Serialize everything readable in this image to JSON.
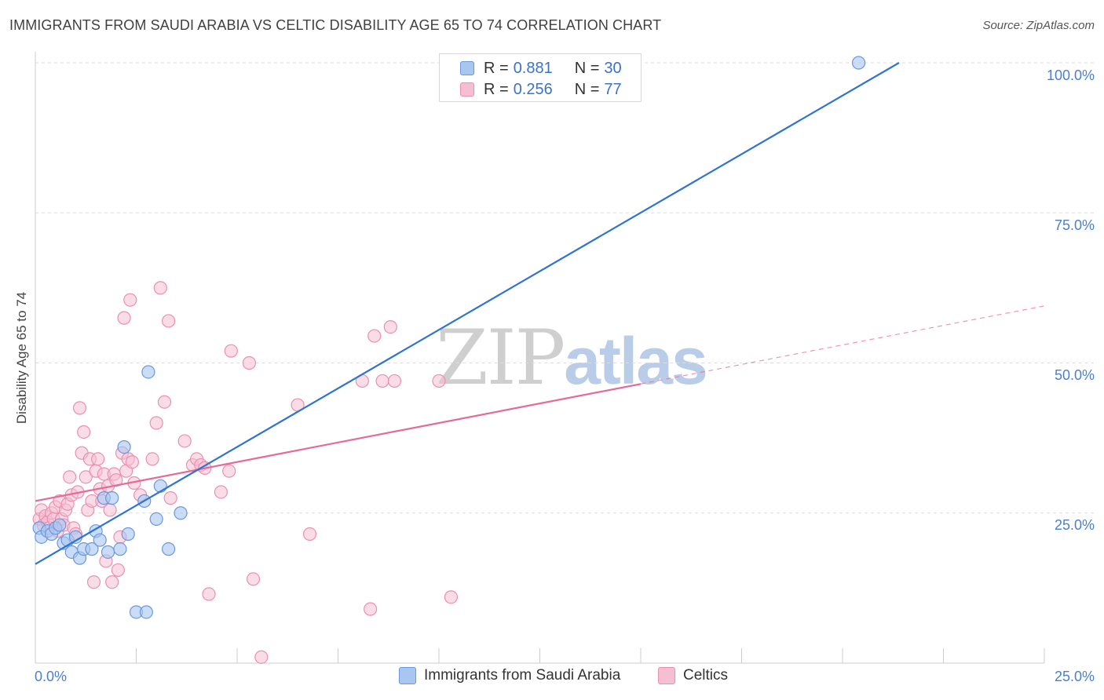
{
  "title": "IMMIGRANTS FROM SAUDI ARABIA VS CELTIC DISABILITY AGE 65 TO 74 CORRELATION CHART",
  "source": "Source: ZipAtlas.com",
  "watermark": {
    "zip": "ZIP",
    "atlas": "atlas"
  },
  "legend": {
    "series1": {
      "r_label": "R =",
      "r_value": "0.881",
      "n_label": "N =",
      "n_value": "30"
    },
    "series2": {
      "r_label": "R =",
      "r_value": "0.256",
      "n_label": "N =",
      "n_value": "77"
    }
  },
  "bottom_legend": {
    "series1": "Immigrants from Saudi Arabia",
    "series2": "Celtics"
  },
  "colors": {
    "blue_fill": "#a9c6f0",
    "blue_stroke": "#6a98dc",
    "blue_line": "#2f74d0",
    "pink_fill": "#f6bfd1",
    "pink_stroke": "#ea90b0",
    "pink_line": "#e56a96",
    "grid": "#dddddd",
    "tick_text": "#4a7fd0"
  },
  "chart_data": {
    "type": "scatter",
    "title": "IMMIGRANTS FROM SAUDI ARABIA VS CELTIC DISABILITY AGE 65 TO 74 CORRELATION CHART",
    "xlabel": "",
    "ylabel": "Disability Age 65 to 74",
    "xlim": [
      0,
      25
    ],
    "ylim": [
      0,
      100
    ],
    "x_tick_labels": [
      "0.0%",
      "25.0%"
    ],
    "y_tick_labels": [
      "100.0%",
      "75.0%",
      "50.0%",
      "25.0%"
    ],
    "y_ticks": [
      100,
      75,
      50,
      25
    ],
    "series": [
      {
        "name": "Immigrants from Saudi Arabia",
        "r": 0.881,
        "n": 30,
        "points": [
          [
            0.1,
            22.5
          ],
          [
            0.15,
            21.0
          ],
          [
            0.3,
            22.0
          ],
          [
            0.4,
            21.5
          ],
          [
            0.5,
            22.5
          ],
          [
            0.6,
            23.0
          ],
          [
            0.7,
            20.0
          ],
          [
            0.8,
            20.5
          ],
          [
            0.9,
            18.5
          ],
          [
            1.0,
            21.0
          ],
          [
            1.1,
            17.5
          ],
          [
            1.2,
            19.0
          ],
          [
            1.4,
            19.0
          ],
          [
            1.5,
            22.0
          ],
          [
            1.6,
            20.5
          ],
          [
            1.7,
            27.5
          ],
          [
            1.8,
            18.5
          ],
          [
            1.9,
            27.5
          ],
          [
            2.1,
            19.0
          ],
          [
            2.2,
            36.0
          ],
          [
            2.3,
            21.5
          ],
          [
            2.5,
            8.5
          ],
          [
            2.7,
            27.0
          ],
          [
            2.75,
            8.5
          ],
          [
            2.8,
            48.5
          ],
          [
            3.0,
            24.0
          ],
          [
            3.1,
            29.5
          ],
          [
            3.3,
            19.0
          ],
          [
            3.6,
            25.0
          ],
          [
            20.4,
            100.0
          ]
        ],
        "trend": {
          "x0": 0,
          "y0": 16.5,
          "x1": 21.4,
          "y1": 100.0
        }
      },
      {
        "name": "Celtics",
        "r": 0.256,
        "n": 77,
        "points": [
          [
            0.1,
            24.0
          ],
          [
            0.15,
            25.5
          ],
          [
            0.2,
            23.0
          ],
          [
            0.25,
            24.5
          ],
          [
            0.3,
            23.5
          ],
          [
            0.35,
            22.5
          ],
          [
            0.4,
            25.0
          ],
          [
            0.45,
            24.0
          ],
          [
            0.5,
            26.0
          ],
          [
            0.55,
            22.0
          ],
          [
            0.6,
            27.0
          ],
          [
            0.65,
            24.0
          ],
          [
            0.7,
            23.0
          ],
          [
            0.75,
            25.5
          ],
          [
            0.8,
            26.5
          ],
          [
            0.85,
            31.0
          ],
          [
            0.9,
            28.0
          ],
          [
            0.95,
            22.5
          ],
          [
            1.0,
            21.5
          ],
          [
            1.05,
            28.5
          ],
          [
            1.1,
            42.5
          ],
          [
            1.15,
            35.0
          ],
          [
            1.2,
            38.5
          ],
          [
            1.25,
            31.0
          ],
          [
            1.3,
            25.5
          ],
          [
            1.35,
            34.0
          ],
          [
            1.4,
            27.0
          ],
          [
            1.45,
            13.5
          ],
          [
            1.5,
            32.0
          ],
          [
            1.55,
            34.0
          ],
          [
            1.6,
            29.0
          ],
          [
            1.65,
            27.0
          ],
          [
            1.7,
            31.5
          ],
          [
            1.75,
            17.0
          ],
          [
            1.8,
            29.5
          ],
          [
            1.85,
            25.5
          ],
          [
            1.9,
            13.5
          ],
          [
            1.95,
            31.5
          ],
          [
            2.0,
            30.5
          ],
          [
            2.05,
            15.5
          ],
          [
            2.1,
            21.0
          ],
          [
            2.15,
            35.0
          ],
          [
            2.2,
            57.5
          ],
          [
            2.25,
            32.0
          ],
          [
            2.3,
            34.0
          ],
          [
            2.35,
            60.5
          ],
          [
            2.4,
            33.5
          ],
          [
            2.45,
            30.0
          ],
          [
            2.6,
            28.0
          ],
          [
            2.9,
            34.0
          ],
          [
            3.0,
            40.0
          ],
          [
            3.1,
            62.5
          ],
          [
            3.2,
            43.5
          ],
          [
            3.3,
            57.0
          ],
          [
            3.35,
            27.5
          ],
          [
            3.7,
            37.0
          ],
          [
            3.9,
            33.0
          ],
          [
            4.0,
            34.0
          ],
          [
            4.1,
            33.0
          ],
          [
            4.2,
            32.5
          ],
          [
            4.3,
            11.5
          ],
          [
            4.6,
            28.5
          ],
          [
            4.8,
            32.0
          ],
          [
            4.85,
            52.0
          ],
          [
            5.3,
            50.0
          ],
          [
            5.4,
            14.0
          ],
          [
            5.6,
            1.0
          ],
          [
            6.5,
            43.0
          ],
          [
            6.8,
            21.5
          ],
          [
            8.1,
            47.0
          ],
          [
            8.3,
            9.0
          ],
          [
            8.4,
            54.5
          ],
          [
            8.6,
            47.0
          ],
          [
            8.8,
            56.0
          ],
          [
            8.9,
            47.0
          ],
          [
            10.3,
            11.0
          ],
          [
            10.0,
            47.0
          ]
        ],
        "trend": {
          "x0": 0,
          "y0": 27.0,
          "x1": 15.0,
          "y1": 46.5
        },
        "trend_dashed": {
          "x0": 15.0,
          "y0": 46.5,
          "x1": 25.0,
          "y1": 59.5
        }
      }
    ]
  }
}
